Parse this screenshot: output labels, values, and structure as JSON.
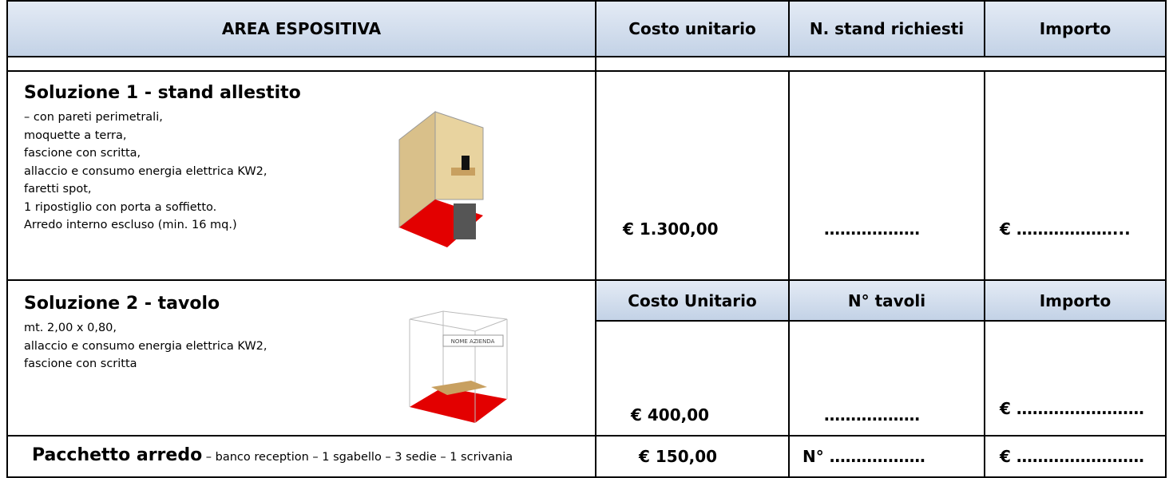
{
  "header": {
    "area": "AREA ESPOSITIVA",
    "unit_cost": "Costo unitario",
    "quantity": "N. stand richiesti",
    "amount": "Importo"
  },
  "rows": [
    {
      "title": "Soluzione 1 - stand allestito",
      "description": [
        "– con pareti perimetrali,",
        "moquette a terra,",
        "fascione con scritta,",
        "allaccio e consumo energia elettrica KW2,",
        "faretti spot,",
        "1 ripostiglio con porta a soffietto.",
        "Arredo interno escluso (min. 16 mq.)"
      ],
      "price": "€ 1.300,00",
      "quantity": "………………",
      "amount": "€  ………………..."
    },
    {
      "title": "Soluzione 2 - tavolo",
      "description": [
        "mt. 2,00 x 0,80,",
        "allaccio e consumo energia elettrica KW2,",
        "fascione con scritta"
      ],
      "subheader": {
        "unit_cost": "Costo Unitario",
        "quantity": "N° tavoli",
        "amount": "Importo"
      },
      "sign_text": "NOME AZIENDA",
      "price": "€ 400,00",
      "quantity": "………………",
      "amount": "€ ……………………"
    },
    {
      "title": "Pacchetto arredo",
      "detail": " – banco reception – 1 sgabello – 3 sedie – 1 scrivania",
      "price": "€ 150,00",
      "quantity": "N° ………………",
      "amount": "€ ……………………"
    }
  ]
}
